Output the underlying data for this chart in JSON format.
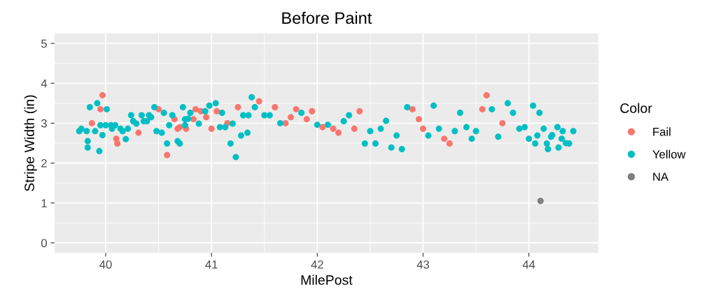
{
  "chart_data": {
    "type": "scatter",
    "title": "Before Paint",
    "xlabel": "MilePost",
    "ylabel": "Stripe Width (in)",
    "legend_title": "Color",
    "xlim": [
      39.517,
      44.656
    ],
    "xticks": [
      40,
      41,
      42,
      43,
      44
    ],
    "ylim": [
      -0.25,
      5.25
    ],
    "yticks": [
      0,
      1,
      2,
      3,
      4,
      5
    ],
    "grid": true,
    "legend": "right",
    "marker": "circle",
    "series": [
      {
        "name": "Fail",
        "color": "#f8766d",
        "x": [
          39.87,
          39.95,
          39.97,
          40.1,
          40.11,
          40.31,
          40.5,
          40.58,
          40.65,
          40.68,
          40.7,
          40.76,
          40.83,
          40.85,
          40.9,
          40.95,
          41.0,
          41.05,
          41.15,
          41.25,
          41.45,
          41.6,
          41.7,
          41.75,
          41.8,
          41.9,
          41.95,
          42.05,
          42.15,
          42.2,
          42.35,
          42.4,
          42.9,
          42.96,
          43.0,
          43.2,
          43.25,
          43.56,
          43.6,
          43.75
        ],
        "values": [
          3.0,
          3.35,
          3.7,
          2.61,
          2.49,
          2.76,
          3.35,
          2.2,
          3.1,
          2.86,
          2.9,
          2.86,
          3.1,
          3.35,
          3.3,
          3.15,
          2.86,
          3.3,
          3.0,
          3.4,
          3.55,
          3.4,
          3.0,
          3.15,
          3.35,
          3.1,
          3.3,
          2.9,
          2.86,
          2.76,
          2.86,
          3.3,
          3.35,
          3.1,
          2.86,
          2.61,
          2.49,
          3.35,
          3.7,
          3.0
        ]
      },
      {
        "name": "Yellow",
        "color": "#00bfc4",
        "x": [
          39.75,
          39.77,
          39.82,
          39.83,
          39.83,
          39.85,
          39.9,
          39.92,
          39.94,
          39.95,
          39.97,
          40.0,
          40.01,
          40.05,
          40.06,
          40.09,
          40.14,
          40.16,
          40.19,
          40.21,
          40.24,
          40.26,
          40.29,
          40.34,
          40.36,
          40.39,
          40.41,
          40.43,
          40.46,
          40.48,
          40.53,
          40.55,
          40.58,
          40.6,
          40.63,
          40.68,
          40.7,
          40.73,
          40.75,
          40.75,
          40.78,
          40.8,
          40.88,
          40.94,
          40.98,
          41.04,
          41.08,
          41.1,
          41.13,
          41.18,
          41.2,
          41.23,
          41.28,
          41.3,
          41.34,
          41.35,
          41.38,
          41.41,
          41.5,
          41.55,
          41.65,
          41.85,
          42.0,
          42.1,
          42.25,
          42.3,
          42.45,
          42.5,
          42.55,
          42.6,
          42.65,
          42.7,
          42.75,
          42.8,
          42.85,
          43.05,
          43.1,
          43.15,
          43.3,
          43.35,
          43.41,
          43.46,
          43.5,
          43.65,
          43.71,
          43.8,
          43.85,
          43.91,
          43.96,
          44.0,
          44.04,
          44.06,
          44.08,
          44.1,
          44.14,
          44.17,
          44.18,
          44.21,
          44.22,
          44.27,
          44.28,
          44.31,
          44.32,
          44.35,
          44.38,
          44.42
        ],
        "values": [
          2.8,
          2.86,
          2.8,
          2.55,
          2.39,
          3.4,
          2.8,
          3.5,
          2.3,
          2.95,
          2.7,
          2.95,
          3.35,
          2.95,
          2.86,
          2.95,
          2.86,
          2.8,
          2.6,
          2.86,
          3.2,
          3.05,
          2.99,
          3.2,
          3.05,
          3.05,
          3.2,
          3.15,
          3.4,
          2.8,
          2.76,
          3.26,
          2.49,
          2.95,
          3.2,
          2.55,
          2.49,
          3.4,
          2.95,
          3.1,
          3.11,
          3.26,
          2.99,
          3.3,
          3.44,
          3.5,
          2.9,
          3.26,
          2.9,
          2.49,
          2.99,
          2.15,
          2.69,
          3.2,
          2.76,
          3.2,
          3.65,
          3.4,
          3.2,
          3.2,
          3.0,
          3.26,
          2.96,
          2.96,
          3.05,
          3.2,
          2.49,
          2.8,
          2.49,
          2.86,
          3.06,
          2.39,
          2.69,
          2.35,
          3.4,
          2.69,
          3.44,
          2.86,
          2.8,
          3.26,
          2.9,
          2.61,
          2.8,
          3.35,
          2.66,
          3.5,
          3.26,
          2.86,
          2.9,
          2.61,
          3.44,
          2.49,
          2.69,
          3.26,
          2.86,
          2.49,
          2.35,
          2.66,
          2.7,
          2.9,
          2.39,
          2.61,
          2.8,
          2.5,
          2.49,
          2.8
        ]
      },
      {
        "name": "NA",
        "color": "#7f7f7f",
        "x": [
          44.11
        ],
        "values": [
          1.05
        ]
      }
    ]
  }
}
